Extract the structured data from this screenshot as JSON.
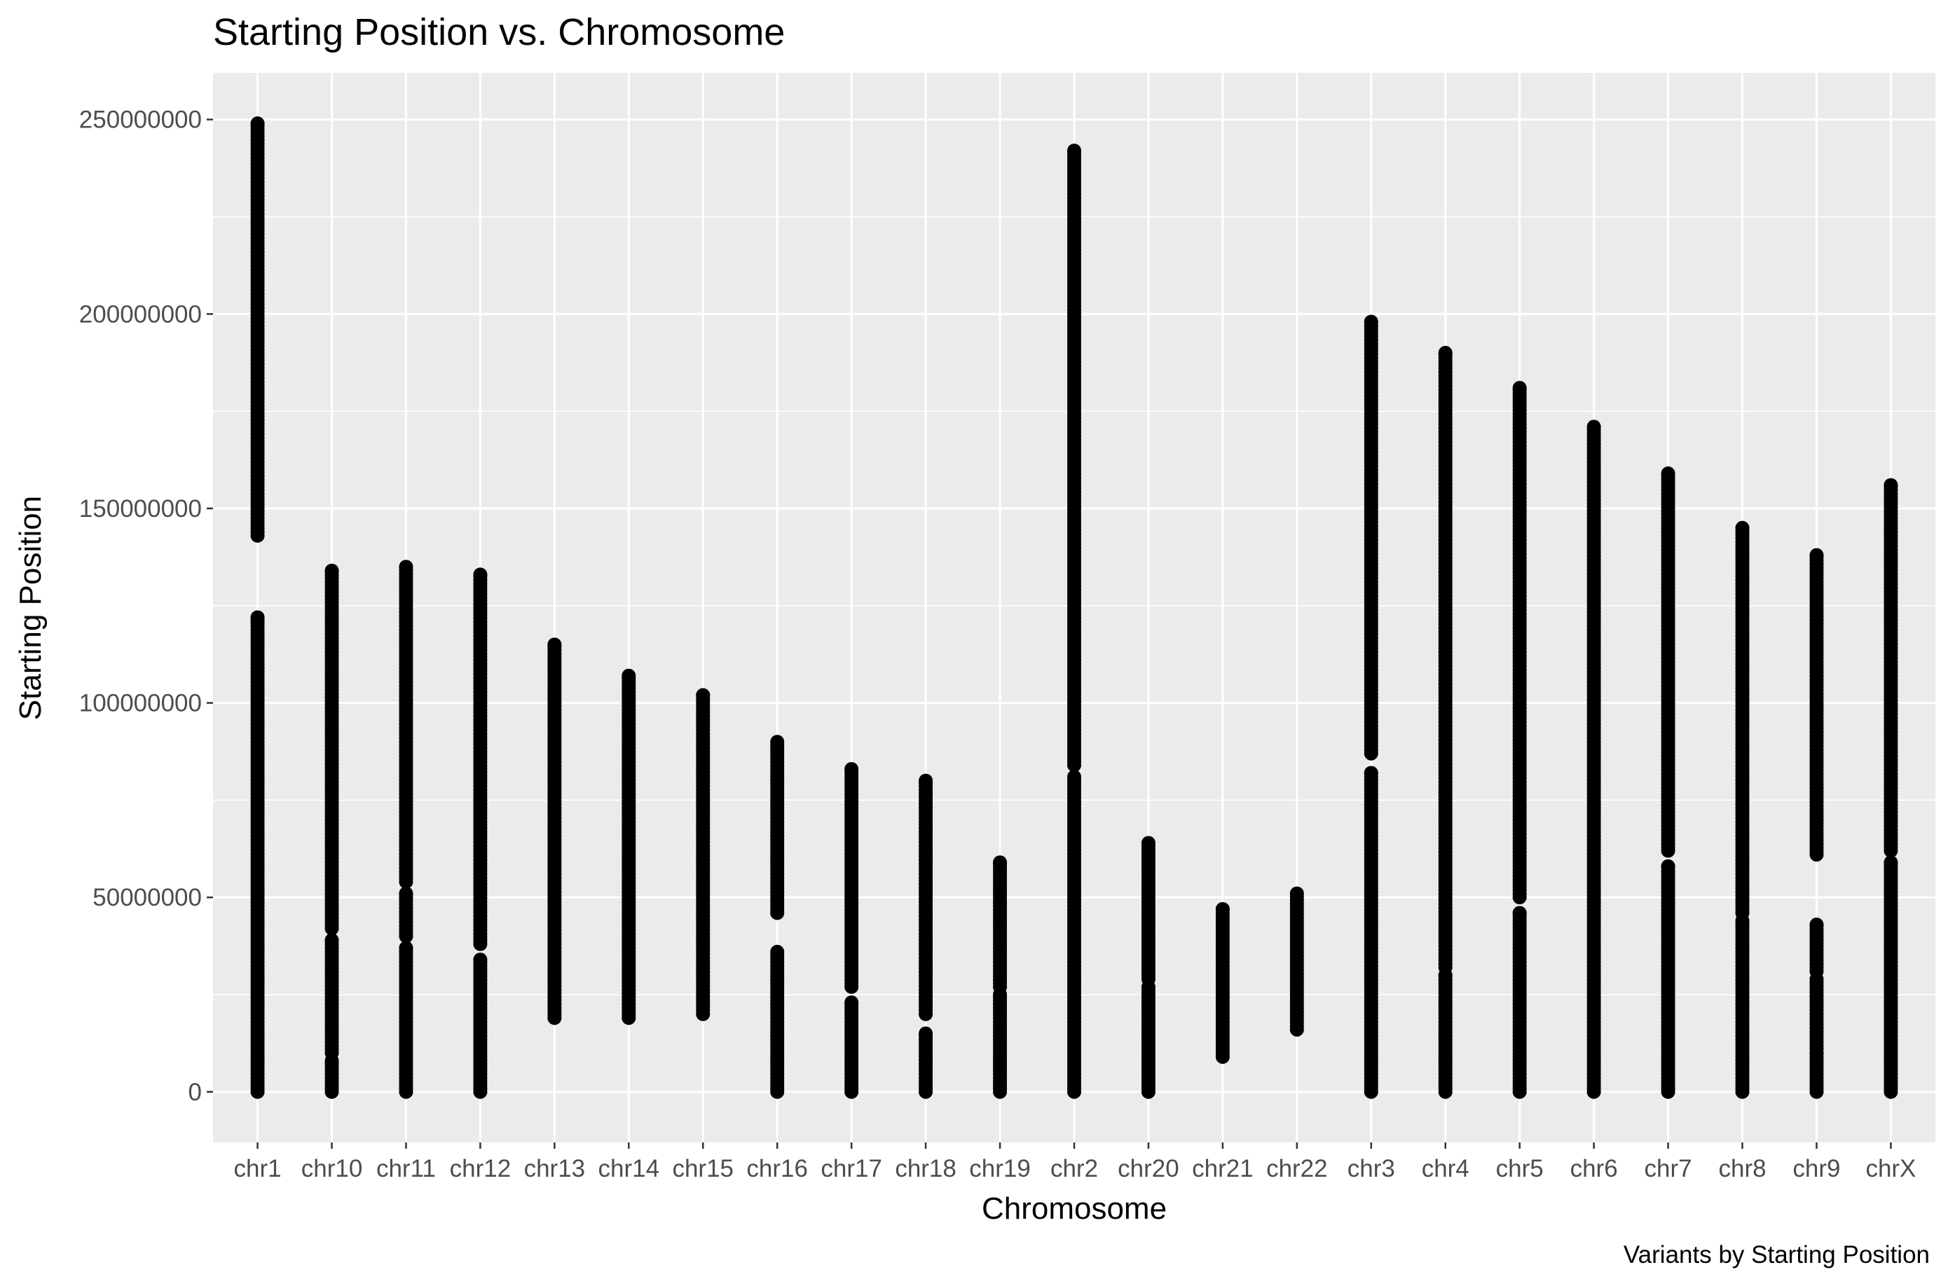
{
  "chart_data": {
    "type": "scatter",
    "title": "Starting Position vs. Chromosome",
    "xlabel": "Chromosome",
    "ylabel": "Starting Position",
    "caption": "Variants by Starting Position",
    "categories": [
      "chr1",
      "chr10",
      "chr11",
      "chr12",
      "chr13",
      "chr14",
      "chr15",
      "chr16",
      "chr17",
      "chr18",
      "chr19",
      "chr2",
      "chr20",
      "chr21",
      "chr22",
      "chr3",
      "chr4",
      "chr5",
      "chr6",
      "chr7",
      "chr8",
      "chr9",
      "chrX"
    ],
    "y_ticks": [
      0,
      50000000,
      100000000,
      150000000,
      200000000,
      250000000
    ],
    "y_tick_labels": [
      "0",
      "50000000",
      "100000000",
      "150000000",
      "200000000",
      "250000000"
    ],
    "ylim": [
      -13000000,
      262000000
    ],
    "grid": true,
    "point_color": "#000000",
    "panel_color": "#ebebeb",
    "grid_color": "#ffffff",
    "series_segments": [
      {
        "category": "chr1",
        "ranges": [
          [
            0,
            122000000
          ],
          [
            143000000,
            249000000
          ]
        ]
      },
      {
        "category": "chr10",
        "ranges": [
          [
            0,
            8000000
          ],
          [
            10000000,
            39000000
          ],
          [
            42000000,
            134000000
          ]
        ]
      },
      {
        "category": "chr11",
        "ranges": [
          [
            0,
            37000000
          ],
          [
            40000000,
            51000000
          ],
          [
            54000000,
            135000000
          ]
        ]
      },
      {
        "category": "chr12",
        "ranges": [
          [
            0,
            34000000
          ],
          [
            38000000,
            133000000
          ]
        ]
      },
      {
        "category": "chr13",
        "ranges": [
          [
            19000000,
            115000000
          ]
        ]
      },
      {
        "category": "chr14",
        "ranges": [
          [
            19000000,
            107000000
          ]
        ]
      },
      {
        "category": "chr15",
        "ranges": [
          [
            20000000,
            102000000
          ]
        ]
      },
      {
        "category": "chr16",
        "ranges": [
          [
            0,
            36000000
          ],
          [
            46000000,
            90000000
          ]
        ]
      },
      {
        "category": "chr17",
        "ranges": [
          [
            0,
            23000000
          ],
          [
            27000000,
            83000000
          ]
        ]
      },
      {
        "category": "chr18",
        "ranges": [
          [
            0,
            15000000
          ],
          [
            20000000,
            80000000
          ]
        ]
      },
      {
        "category": "chr19",
        "ranges": [
          [
            0,
            25000000
          ],
          [
            27000000,
            59000000
          ]
        ]
      },
      {
        "category": "chr2",
        "ranges": [
          [
            0,
            81000000
          ],
          [
            84000000,
            242000000
          ]
        ]
      },
      {
        "category": "chr20",
        "ranges": [
          [
            0,
            27000000
          ],
          [
            29000000,
            64000000
          ]
        ]
      },
      {
        "category": "chr21",
        "ranges": [
          [
            9000000,
            47000000
          ]
        ]
      },
      {
        "category": "chr22",
        "ranges": [
          [
            16000000,
            51000000
          ]
        ]
      },
      {
        "category": "chr3",
        "ranges": [
          [
            0,
            82000000
          ],
          [
            87000000,
            198000000
          ]
        ]
      },
      {
        "category": "chr4",
        "ranges": [
          [
            0,
            30000000
          ],
          [
            32000000,
            190000000
          ]
        ]
      },
      {
        "category": "chr5",
        "ranges": [
          [
            0,
            46000000
          ],
          [
            50000000,
            181000000
          ]
        ]
      },
      {
        "category": "chr6",
        "ranges": [
          [
            0,
            171000000
          ]
        ]
      },
      {
        "category": "chr7",
        "ranges": [
          [
            0,
            58000000
          ],
          [
            62000000,
            159000000
          ]
        ]
      },
      {
        "category": "chr8",
        "ranges": [
          [
            0,
            44000000
          ],
          [
            46000000,
            145000000
          ]
        ]
      },
      {
        "category": "chr9",
        "ranges": [
          [
            0,
            10000000
          ],
          [
            11000000,
            29000000
          ],
          [
            31000000,
            43000000
          ],
          [
            61000000,
            138000000
          ]
        ]
      },
      {
        "category": "chrX",
        "ranges": [
          [
            0,
            59000000
          ],
          [
            62000000,
            156000000
          ]
        ]
      }
    ]
  }
}
